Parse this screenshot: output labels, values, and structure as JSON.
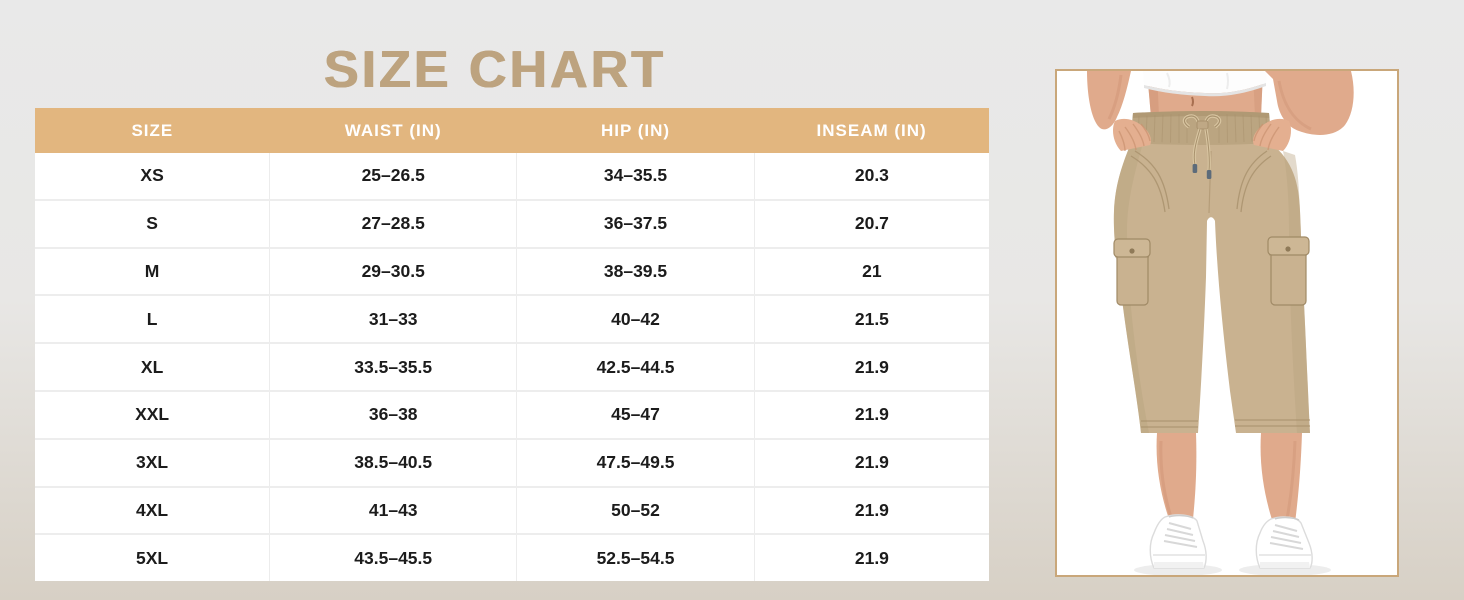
{
  "page": {
    "title": "SIZE CHART"
  },
  "theme": {
    "title_color": "#bda37f",
    "table_header_bg": "#e2b67f",
    "table_header_text": "#ffffff",
    "photo_frame_border": "#c9a77a",
    "background_top": "#e9e9e9",
    "background_bottom": "#d7d0c5",
    "pants_khaki": "#c9b290",
    "skin_tone": "#e0aa8c"
  },
  "size_chart": {
    "columns": [
      "SIZE",
      "WAIST (IN)",
      "HIP (IN)",
      "INSEAM (IN)"
    ],
    "rows": [
      [
        "XS",
        "25–26.5",
        "34–35.5",
        "20.3"
      ],
      [
        "S",
        "27–28.5",
        "36–37.5",
        "20.7"
      ],
      [
        "M",
        "29–30.5",
        "38–39.5",
        "21"
      ],
      [
        "L",
        "31–33",
        "40–42",
        "21.5"
      ],
      [
        "XL",
        "33.5–35.5",
        "42.5–44.5",
        "21.9"
      ],
      [
        "XXL",
        "36–38",
        "45–47",
        "21.9"
      ],
      [
        "3XL",
        "38.5–40.5",
        "47.5–49.5",
        "21.9"
      ],
      [
        "4XL",
        "41–43",
        "50–52",
        "21.9"
      ],
      [
        "5XL",
        "43.5–45.5",
        "52.5–54.5",
        "21.9"
      ]
    ]
  }
}
